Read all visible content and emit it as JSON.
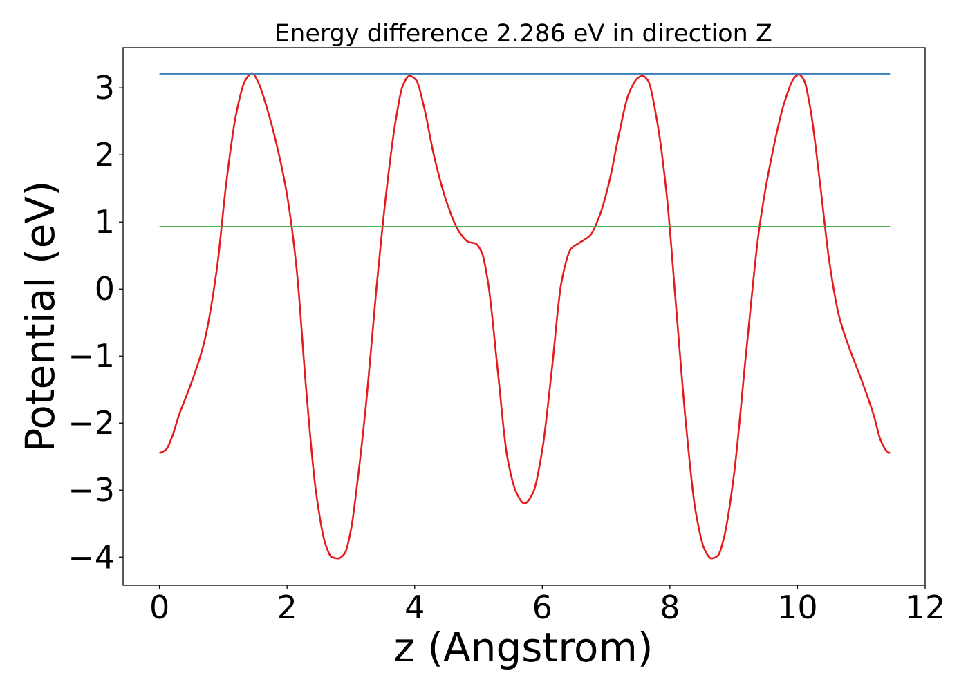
{
  "chart_data": {
    "type": "line",
    "title": "Energy difference 2.286 eV in direction Z",
    "xlabel": "z (Angstrom)",
    "ylabel": "Potential (eV)",
    "xlim": [
      -0.57,
      12.0
    ],
    "ylim": [
      -4.42,
      3.6
    ],
    "xticks": [
      0,
      2,
      4,
      6,
      8,
      10,
      12
    ],
    "yticks": [
      -4,
      -3,
      -2,
      -1,
      0,
      1,
      2,
      3
    ],
    "grid": false,
    "legend": "none",
    "series": [
      {
        "color": "#e41a1c",
        "x": [
          0.0,
          0.1,
          0.2,
          0.3,
          0.5,
          0.7,
          0.9,
          1.05,
          1.2,
          1.35,
          1.45,
          1.55,
          1.7,
          1.85,
          2.0,
          2.15,
          2.3,
          2.45,
          2.6,
          2.7,
          2.8,
          2.9,
          3.0,
          3.1,
          3.25,
          3.4,
          3.55,
          3.7,
          3.82,
          3.92,
          4.02,
          4.15,
          4.3,
          4.5,
          4.7,
          4.85,
          4.95,
          5.05,
          5.15,
          5.3,
          5.45,
          5.6,
          5.72,
          5.85,
          6.0,
          6.15,
          6.3,
          6.45,
          6.6,
          6.75,
          6.9,
          7.05,
          7.2,
          7.35,
          7.5,
          7.57,
          7.65,
          7.8,
          7.95,
          8.1,
          8.25,
          8.4,
          8.55,
          8.65,
          8.75,
          8.85,
          9.0,
          9.2,
          9.4,
          9.6,
          9.8,
          9.95,
          10.02,
          10.1,
          10.2,
          10.35,
          10.5,
          10.65,
          10.8,
          11.0,
          11.2,
          11.3,
          11.4,
          11.45
        ],
        "values": [
          -2.45,
          -2.4,
          -2.2,
          -1.9,
          -1.4,
          -0.8,
          0.3,
          1.6,
          2.6,
          3.12,
          3.22,
          3.08,
          2.65,
          2.1,
          1.4,
          0.3,
          -1.5,
          -3.0,
          -3.8,
          -4.0,
          -4.02,
          -3.95,
          -3.6,
          -2.9,
          -1.6,
          0.0,
          1.4,
          2.5,
          3.05,
          3.18,
          3.12,
          2.7,
          2.0,
          1.3,
          0.85,
          0.7,
          0.68,
          0.55,
          0.1,
          -1.2,
          -2.5,
          -3.05,
          -3.2,
          -3.05,
          -2.4,
          -1.2,
          0.1,
          0.6,
          0.7,
          0.8,
          1.1,
          1.6,
          2.3,
          2.9,
          3.15,
          3.18,
          3.12,
          2.5,
          1.4,
          -0.3,
          -2.0,
          -3.3,
          -3.9,
          -4.02,
          -3.98,
          -3.7,
          -2.8,
          -0.9,
          0.9,
          2.0,
          2.8,
          3.15,
          3.2,
          3.12,
          2.7,
          1.6,
          0.4,
          -0.4,
          -0.85,
          -1.35,
          -1.9,
          -2.25,
          -2.42,
          -2.45
        ]
      },
      {
        "color": "#377eb8",
        "x": [
          0.0,
          11.45
        ],
        "values": [
          3.21,
          3.21
        ]
      },
      {
        "color": "#4daf4a",
        "x": [
          0.0,
          11.45
        ],
        "values": [
          0.93,
          0.93
        ]
      }
    ]
  }
}
